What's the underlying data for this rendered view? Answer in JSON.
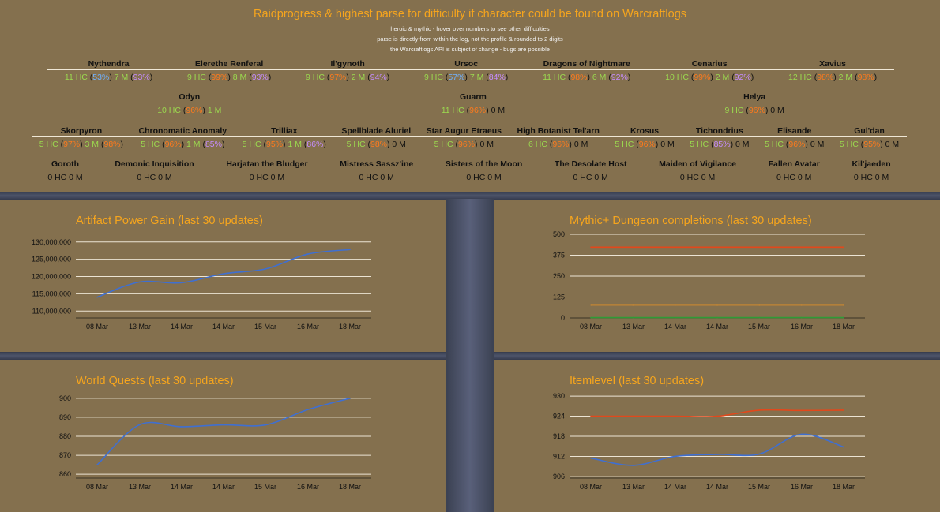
{
  "header": {
    "title": "Raidprogress & highest parse for difficulty if character could be found on Warcraftlogs",
    "notes": [
      "heroic & mythic - hover over numbers to see other difficulties",
      "parse is directly from within the log, not the profile & rounded to 2 digits",
      "the Warcraftlogs API is subject of change - bugs are possible"
    ]
  },
  "raids": [
    {
      "bosses": [
        {
          "name": "Nythendra",
          "hc": "11 HC",
          "hc_parse": "53%",
          "hc_color": "blue",
          "m": "7 M",
          "m_parse": "93%",
          "m_color": "purple"
        },
        {
          "name": "Elerethe Renferal",
          "hc": "9 HC",
          "hc_parse": "99%",
          "hc_color": "orange",
          "m": "8 M",
          "m_parse": "93%",
          "m_color": "purple"
        },
        {
          "name": "Il'gynoth",
          "hc": "9 HC",
          "hc_parse": "97%",
          "hc_color": "orange",
          "m": "2 M",
          "m_parse": "94%",
          "m_color": "purple"
        },
        {
          "name": "Ursoc",
          "hc": "9 HC",
          "hc_parse": "57%",
          "hc_color": "blue",
          "m": "7 M",
          "m_parse": "84%",
          "m_color": "purple"
        },
        {
          "name": "Dragons of Nightmare",
          "hc": "11 HC",
          "hc_parse": "98%",
          "hc_color": "orange",
          "m": "6 M",
          "m_parse": "92%",
          "m_color": "purple"
        },
        {
          "name": "Cenarius",
          "hc": "10 HC",
          "hc_parse": "99%",
          "hc_color": "orange",
          "m": "2 M",
          "m_parse": "92%",
          "m_color": "purple"
        },
        {
          "name": "Xavius",
          "hc": "12 HC",
          "hc_parse": "98%",
          "hc_color": "orange",
          "m": "2 M",
          "m_parse": "98%",
          "m_color": "orange"
        }
      ]
    },
    {
      "bosses": [
        {
          "name": "Odyn",
          "hc": "10 HC",
          "hc_parse": "96%",
          "hc_color": "orange",
          "m": "1 M",
          "m_parse": "",
          "m_color": ""
        },
        {
          "name": "Guarm",
          "hc": "11 HC",
          "hc_parse": "96%",
          "hc_color": "orange",
          "m": "0 M",
          "m_parse": "",
          "m_color": ""
        },
        {
          "name": "Helya",
          "hc": "9 HC",
          "hc_parse": "96%",
          "hc_color": "orange",
          "m": "0 M",
          "m_parse": "",
          "m_color": ""
        }
      ]
    },
    {
      "bosses": [
        {
          "name": "Skorpyron",
          "hc": "5 HC",
          "hc_parse": "97%",
          "hc_color": "orange",
          "m": "3 M",
          "m_parse": "98%",
          "m_color": "orange"
        },
        {
          "name": "Chronomatic Anomaly",
          "hc": "5 HC",
          "hc_parse": "96%",
          "hc_color": "orange",
          "m": "1 M",
          "m_parse": "85%",
          "m_color": "purple"
        },
        {
          "name": "Trilliax",
          "hc": "5 HC",
          "hc_parse": "95%",
          "hc_color": "orange",
          "m": "1 M",
          "m_parse": "86%",
          "m_color": "purple"
        },
        {
          "name": "Spellblade Aluriel",
          "hc": "5 HC",
          "hc_parse": "98%",
          "hc_color": "orange",
          "m": "0 M",
          "m_parse": "",
          "m_color": ""
        },
        {
          "name": "Star Augur Etraeus",
          "hc": "5 HC",
          "hc_parse": "96%",
          "hc_color": "orange",
          "m": "0 M",
          "m_parse": "",
          "m_color": ""
        },
        {
          "name": "High Botanist Tel'arn",
          "hc": "6 HC",
          "hc_parse": "96%",
          "hc_color": "orange",
          "m": "0 M",
          "m_parse": "",
          "m_color": ""
        },
        {
          "name": "Krosus",
          "hc": "5 HC",
          "hc_parse": "96%",
          "hc_color": "orange",
          "m": "0 M",
          "m_parse": "",
          "m_color": ""
        },
        {
          "name": "Tichondrius",
          "hc": "5 HC",
          "hc_parse": "85%",
          "hc_color": "purple",
          "m": "0 M",
          "m_parse": "",
          "m_color": ""
        },
        {
          "name": "Elisande",
          "hc": "5 HC",
          "hc_parse": "96%",
          "hc_color": "orange",
          "m": "0 M",
          "m_parse": "",
          "m_color": ""
        },
        {
          "name": "Gul'dan",
          "hc": "5 HC",
          "hc_parse": "95%",
          "hc_color": "orange",
          "m": "0 M",
          "m_parse": "",
          "m_color": ""
        }
      ]
    },
    {
      "bosses": [
        {
          "name": "Goroth",
          "hc": "0 HC",
          "hc_parse": "",
          "hc_color": "",
          "m": "0 M",
          "m_parse": "",
          "m_color": ""
        },
        {
          "name": "Demonic Inquisition",
          "hc": "0 HC",
          "hc_parse": "",
          "hc_color": "",
          "m": "0 M",
          "m_parse": "",
          "m_color": ""
        },
        {
          "name": "Harjatan the Bludger",
          "hc": "0 HC",
          "hc_parse": "",
          "hc_color": "",
          "m": "0 M",
          "m_parse": "",
          "m_color": ""
        },
        {
          "name": "Mistress Sassz'ine",
          "hc": "0 HC",
          "hc_parse": "",
          "hc_color": "",
          "m": "0 M",
          "m_parse": "",
          "m_color": ""
        },
        {
          "name": "Sisters of the Moon",
          "hc": "0 HC",
          "hc_parse": "",
          "hc_color": "",
          "m": "0 M",
          "m_parse": "",
          "m_color": ""
        },
        {
          "name": "The Desolate Host",
          "hc": "0 HC",
          "hc_parse": "",
          "hc_color": "",
          "m": "0 M",
          "m_parse": "",
          "m_color": ""
        },
        {
          "name": "Maiden of Vigilance",
          "hc": "0 HC",
          "hc_parse": "",
          "hc_color": "",
          "m": "0 M",
          "m_parse": "",
          "m_color": ""
        },
        {
          "name": "Fallen Avatar",
          "hc": "0 HC",
          "hc_parse": "",
          "hc_color": "",
          "m": "0 M",
          "m_parse": "",
          "m_color": ""
        },
        {
          "name": "Kil'jaeden",
          "hc": "0 HC",
          "hc_parse": "",
          "hc_color": "",
          "m": "0 M",
          "m_parse": "",
          "m_color": ""
        }
      ]
    }
  ],
  "colors": {
    "blue": "#6fb1ff",
    "orange": "#ff7a1c",
    "purple": "#c58cff",
    "green": "#9bd94f",
    "title": "#f6a51d",
    "panel": "#84704e",
    "line_blue": "#3f6fd1",
    "line_red": "#e2481b",
    "line_orange": "#ff9a1a",
    "line_green": "#2f9b36"
  },
  "chart_data": [
    {
      "type": "line",
      "title": "Artifact Power Gain (last 30 updates)",
      "xticks": [
        "08 Mar",
        "13 Mar",
        "14 Mar",
        "14 Mar",
        "15 Mar",
        "16 Mar",
        "18 Mar"
      ],
      "yticks": [
        "110,000,000",
        "115,000,000",
        "120,000,000",
        "125,000,000",
        "130,000,000"
      ],
      "ylim": [
        108000000,
        132000000
      ],
      "series": [
        {
          "color": "#3f6fd1",
          "values": [
            114000000,
            118400000,
            118200000,
            120800000,
            122200000,
            126500000,
            127800000
          ]
        }
      ]
    },
    {
      "type": "line",
      "title": "Mythic+ Dungeon completions (last 30 updates)",
      "xticks": [
        "08 Mar",
        "13 Mar",
        "14 Mar",
        "14 Mar",
        "15 Mar",
        "16 Mar",
        "18 Mar"
      ],
      "yticks": [
        "0",
        "125",
        "250",
        "375",
        "500"
      ],
      "ylim": [
        0,
        500
      ],
      "series": [
        {
          "color": "#e2481b",
          "values": [
            423,
            423,
            423,
            423,
            423,
            423,
            423
          ]
        },
        {
          "color": "#ff9a1a",
          "values": [
            78,
            78,
            78,
            78,
            78,
            78,
            78
          ]
        },
        {
          "color": "#2f9b36",
          "values": [
            2,
            2,
            2,
            2,
            2,
            2,
            2
          ]
        }
      ]
    },
    {
      "type": "line",
      "title": "World Quests (last 30 updates)",
      "xticks": [
        "08 Mar",
        "13 Mar",
        "14 Mar",
        "14 Mar",
        "15 Mar",
        "16 Mar",
        "18 Mar"
      ],
      "yticks": [
        "860",
        "870",
        "880",
        "890",
        "900"
      ],
      "ylim": [
        858,
        902
      ],
      "series": [
        {
          "color": "#3f6fd1",
          "values": [
            865,
            886,
            885,
            886,
            886,
            894,
            900
          ]
        }
      ]
    },
    {
      "type": "line",
      "title": "Itemlevel (last 30 updates)",
      "xticks": [
        "08 Mar",
        "13 Mar",
        "14 Mar",
        "14 Mar",
        "15 Mar",
        "16 Mar",
        "18 Mar"
      ],
      "yticks": [
        "906",
        "912",
        "918",
        "924",
        "930"
      ],
      "ylim": [
        905.5,
        930.5
      ],
      "series": [
        {
          "color": "#e2481b",
          "values": [
            924,
            924,
            924,
            924,
            925.8,
            925.7,
            925.8
          ]
        },
        {
          "color": "#3f6fd1",
          "values": [
            911.5,
            909.3,
            912,
            912.6,
            912.7,
            918.6,
            914.8
          ]
        }
      ]
    }
  ]
}
